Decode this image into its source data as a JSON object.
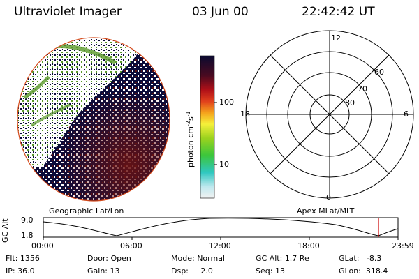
{
  "header": {
    "instrument": "Ultraviolet Imager",
    "date": "03 Jun 00",
    "time": "22:42:42 UT"
  },
  "colorbar": {
    "unit_label": "photon cm",
    "unit_exp1": "-2",
    "unit_s": "s",
    "unit_exp2": "-1",
    "ticks": [
      "100",
      "10"
    ]
  },
  "polar_plot": {
    "mlt_labels": {
      "top": "12",
      "left": "18",
      "right": "6",
      "bottom": "0"
    },
    "lat_labels": [
      "60",
      "70",
      "80"
    ]
  },
  "timeline": {
    "left_title": "Geographic Lat/Lon",
    "right_title": "Apex MLat/MLT",
    "y_axis_label": "GC Alt",
    "y_ticks": [
      "9.0",
      "1.8"
    ],
    "x_ticks": [
      "00:00",
      "06:00",
      "12:00",
      "18:00",
      "23:59"
    ],
    "marker_color": "#cc0000"
  },
  "info": {
    "row1": [
      {
        "label": "Flt:",
        "value": "1356"
      },
      {
        "label": "Door:",
        "value": "Open"
      },
      {
        "label": "Mode:",
        "value": "Normal"
      },
      {
        "label": "GC Alt:",
        "value": "1.7 Re"
      },
      {
        "label": "GLat:",
        "value": "-8.3"
      }
    ],
    "row2": [
      {
        "label": "IP:",
        "value": "36.0"
      },
      {
        "label": "Gain:",
        "value": "13"
      },
      {
        "label": "Dsp:",
        "value": "2.0"
      },
      {
        "label": "Seq:",
        "value": "13"
      },
      {
        "label": "GLon:",
        "value": "318.4"
      }
    ]
  },
  "colors": {
    "disk_dark": "#0b0b3a",
    "disk_red": "#5a1010",
    "aurora_green": "#5a9a2a",
    "outline_red": "#d4491a"
  }
}
